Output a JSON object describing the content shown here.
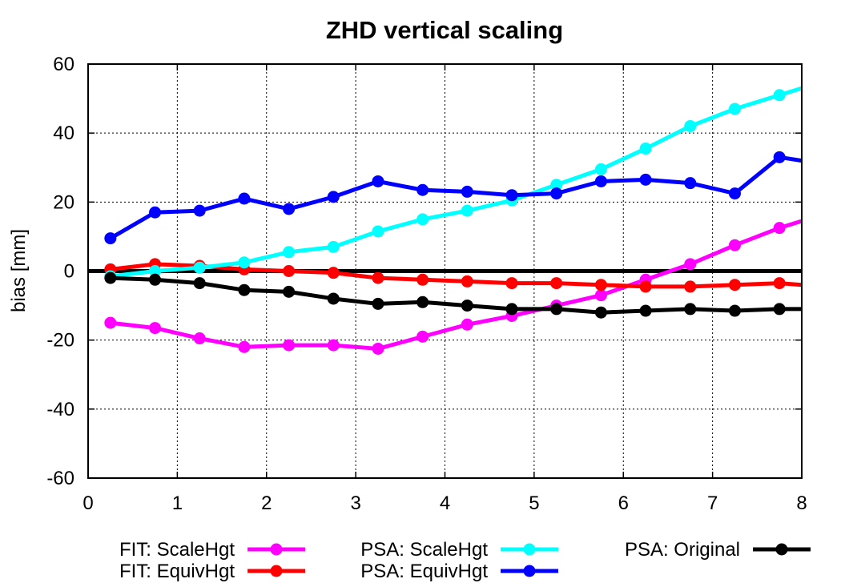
{
  "chart_data": {
    "type": "line",
    "title": "ZHD vertical scaling",
    "xlabel": "",
    "ylabel": "bias [mm]",
    "xlim": [
      0,
      8
    ],
    "ylim": [
      -60,
      60
    ],
    "xticks": [
      "0",
      "1",
      "2",
      "3",
      "4",
      "5",
      "6",
      "7",
      "8"
    ],
    "yticks": [
      "60",
      "40",
      "20",
      "0",
      "-20",
      "-40",
      "-60"
    ],
    "grid": true,
    "legend_position": "bottom",
    "reference_line_y": 0,
    "series": [
      {
        "name": "FIT: ScaleHgt",
        "color": "#ff00ff",
        "x": [
          0.25,
          0.75,
          1.25,
          1.75,
          2.25,
          2.75,
          3.25,
          3.75,
          4.25,
          4.75,
          5.25,
          5.75,
          6.25,
          6.75,
          7.25,
          7.75,
          8.0
        ],
        "y": [
          -15,
          -16.5,
          -19.5,
          -22,
          -21.5,
          -21.5,
          -22.5,
          -19,
          -15.5,
          -13,
          -10,
          -7,
          -2.5,
          2,
          7.5,
          12.5,
          14.5
        ]
      },
      {
        "name": "FIT: EquivHgt",
        "color": "#ff0000",
        "x": [
          0.25,
          0.75,
          1.25,
          1.75,
          2.25,
          2.75,
          3.25,
          3.75,
          4.25,
          4.75,
          5.25,
          5.75,
          6.25,
          6.75,
          7.25,
          7.75,
          8.0
        ],
        "y": [
          0.5,
          2,
          1.5,
          0.5,
          0,
          -0.5,
          -2,
          -2.5,
          -3,
          -3.5,
          -3.5,
          -4,
          -4.5,
          -4.5,
          -4,
          -3.5,
          -4
        ]
      },
      {
        "name": "PSA: ScaleHgt",
        "color": "#00ffff",
        "x": [
          0.25,
          0.75,
          1.25,
          1.75,
          2.25,
          2.75,
          3.25,
          3.75,
          4.25,
          4.75,
          5.25,
          5.75,
          6.25,
          6.75,
          7.25,
          7.75,
          8.0
        ],
        "y": [
          -1.5,
          0,
          1,
          2.5,
          5.5,
          7,
          11.5,
          15,
          17.5,
          20.5,
          25,
          29.5,
          35.5,
          42,
          47,
          51,
          53
        ]
      },
      {
        "name": "PSA: EquivHgt",
        "color": "#0000ff",
        "x": [
          0.25,
          0.75,
          1.25,
          1.75,
          2.25,
          2.75,
          3.25,
          3.75,
          4.25,
          4.75,
          5.25,
          5.75,
          6.25,
          6.75,
          7.25,
          7.75,
          8.0
        ],
        "y": [
          9.5,
          17,
          17.5,
          21,
          18,
          21.5,
          26,
          23.5,
          23,
          22,
          22.5,
          26,
          26.5,
          25.5,
          22.5,
          33,
          32
        ]
      },
      {
        "name": "PSA: Original",
        "color": "#000000",
        "x": [
          0.25,
          0.75,
          1.25,
          1.75,
          2.25,
          2.75,
          3.25,
          3.75,
          4.25,
          4.75,
          5.25,
          5.75,
          6.25,
          6.75,
          7.25,
          7.75,
          8.0
        ],
        "y": [
          -2,
          -2.5,
          -3.5,
          -5.5,
          -6,
          -8,
          -9.5,
          -9,
          -10,
          -11,
          -11,
          -12,
          -11.5,
          -11,
          -11.5,
          -11,
          -11
        ]
      }
    ]
  }
}
